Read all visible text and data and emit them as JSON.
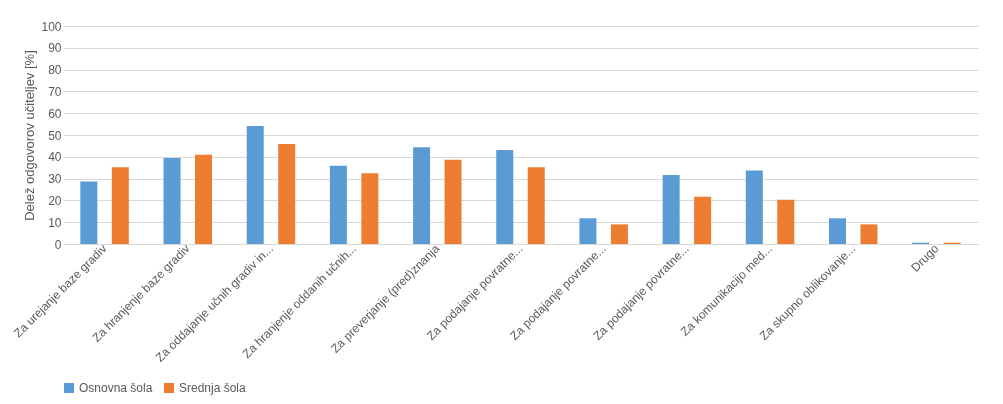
{
  "chart_data": {
    "type": "bar",
    "ylabel": "Delež odgovorov učiteljev [%]",
    "categories": [
      "Za urejanje baze gradiv",
      "Za hranjenje baze gradiv",
      "Za oddajanje učnih gradiv in...",
      "Za hranjenje oddanih učnih...",
      "Za preverjanje (pred)znanja",
      "Za podajanje povratne...",
      "Za podajanje povratne...",
      "Za podajanje povratne...",
      "Za komunikacijo med...",
      "Za skupno oblikovanje...",
      "Drugo"
    ],
    "series": [
      {
        "name": "Osnovna šola",
        "color": "#5b9bd5",
        "values": [
          28.7,
          39.4,
          54.1,
          35.9,
          44.4,
          43.1,
          11.8,
          31.7,
          33.7,
          11.8,
          0.6
        ]
      },
      {
        "name": "Srednja šola",
        "color": "#ed7d31",
        "values": [
          35.2,
          40.9,
          45.9,
          32.4,
          38.7,
          35.2,
          9.0,
          21.7,
          20.3,
          9.0,
          0.6
        ]
      }
    ],
    "ylim": [
      0,
      100
    ],
    "yticks": [
      0,
      10,
      20,
      30,
      40,
      50,
      60,
      70,
      80,
      90,
      100
    ],
    "grid": "y",
    "legend": "bottom"
  }
}
